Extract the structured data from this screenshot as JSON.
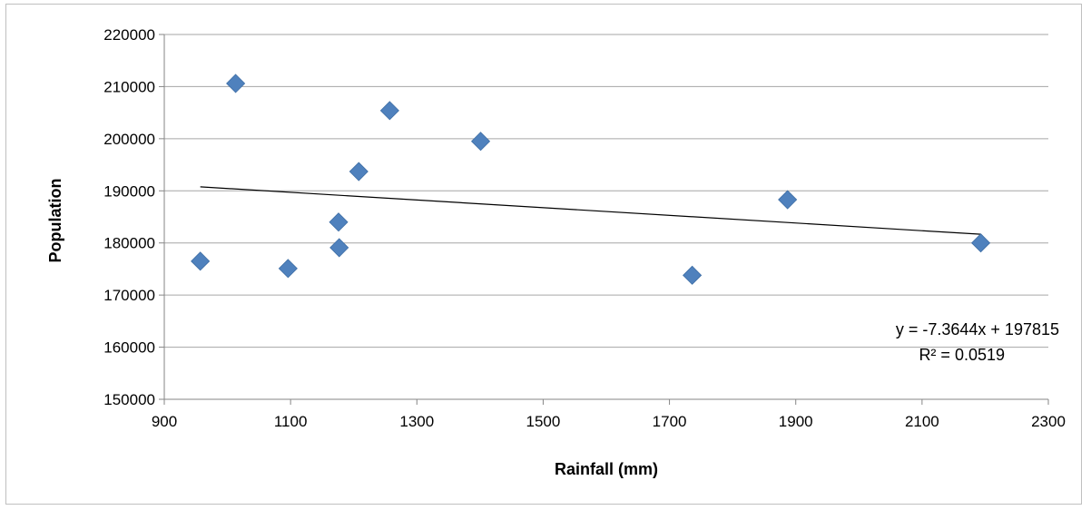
{
  "chart_data": {
    "type": "scatter",
    "title": "",
    "xlabel": "Rainfall (mm)",
    "ylabel": "Population",
    "xlim": [
      900,
      2300
    ],
    "ylim": [
      150000,
      220000
    ],
    "xticks": [
      900,
      1100,
      1300,
      1500,
      1700,
      1900,
      2100,
      2300
    ],
    "yticks": [
      150000,
      160000,
      170000,
      180000,
      190000,
      200000,
      210000,
      220000
    ],
    "grid": true,
    "marker_color": "#4f81bd",
    "points": [
      {
        "x": 957,
        "y": 176500
      },
      {
        "x": 1013,
        "y": 210600
      },
      {
        "x": 1096,
        "y": 175100
      },
      {
        "x": 1176,
        "y": 184000
      },
      {
        "x": 1177,
        "y": 179100
      },
      {
        "x": 1208,
        "y": 193700
      },
      {
        "x": 1257,
        "y": 205400
      },
      {
        "x": 1401,
        "y": 199500
      },
      {
        "x": 1736,
        "y": 173800
      },
      {
        "x": 1887,
        "y": 188300
      },
      {
        "x": 2193,
        "y": 180000
      }
    ],
    "trendline": {
      "type": "linear",
      "x_range": [
        957,
        2193
      ],
      "slope": -7.3644,
      "intercept": 197815,
      "equation_label": "y = -7.3644x + 197815",
      "r2_label": "R² = 0.0519",
      "color": "#000000"
    }
  }
}
